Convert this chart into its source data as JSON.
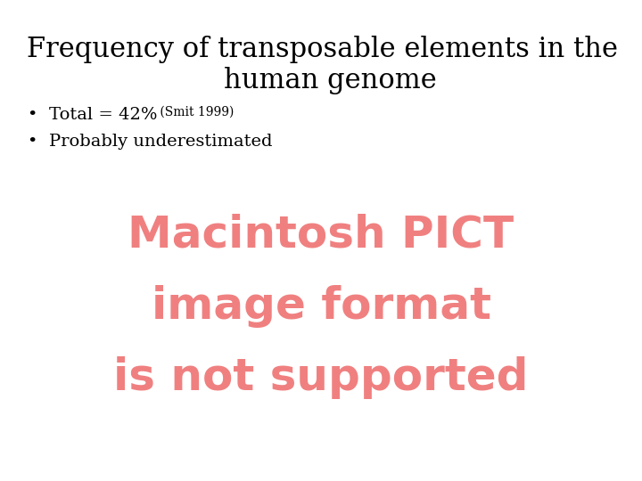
{
  "title_line1": "Frequency of transposable elements in the",
  "title_line2": "human genome",
  "bullet1_main": "Total = 42%",
  "bullet1_small": " (Smit 1999)",
  "bullet2": "Probably underestimated",
  "pict_line1": "Macintosh PICT",
  "pict_line2": "image format",
  "pict_line3": "is not supported",
  "background_color": "#ffffff",
  "title_color": "#000000",
  "bullet_color": "#000000",
  "pict_color": "#f08080",
  "title_fontsize": 22,
  "bullet_fontsize": 14,
  "bullet_small_fontsize": 10,
  "pict_fontsize": 36
}
